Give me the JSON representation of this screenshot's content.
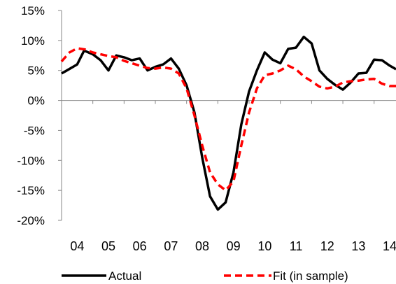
{
  "chart_data": {
    "type": "line",
    "title": "",
    "xlabel": "",
    "ylabel": "",
    "xlim": [
      2004.0,
      2014.7
    ],
    "ylim": [
      -20,
      15
    ],
    "y_ticks": [
      15,
      10,
      5,
      0,
      -5,
      -10,
      -15,
      -20
    ],
    "y_tick_labels": [
      "15%",
      "10%",
      "5%",
      "0%",
      "-5%",
      "-10%",
      "-15%",
      "-20%"
    ],
    "x_ticks": [
      2004,
      2005,
      2006,
      2007,
      2008,
      2009,
      2010,
      2011,
      2012,
      2013,
      2014
    ],
    "x_tick_labels": [
      "04",
      "05",
      "06",
      "07",
      "08",
      "09",
      "10",
      "11",
      "12",
      "13",
      "14"
    ],
    "grid": false,
    "legend_position": "bottom",
    "series": [
      {
        "name": "Actual",
        "color": "#000000",
        "style": "solid",
        "x": [
          2004.0,
          2004.17,
          2004.5,
          2004.72,
          2005.0,
          2005.25,
          2005.5,
          2005.75,
          2006.0,
          2006.25,
          2006.5,
          2006.75,
          2007.0,
          2007.25,
          2007.5,
          2007.75,
          2008.0,
          2008.25,
          2008.5,
          2008.75,
          2009.0,
          2009.25,
          2009.5,
          2009.75,
          2010.0,
          2010.25,
          2010.5,
          2010.75,
          2011.0,
          2011.25,
          2011.5,
          2011.75,
          2012.0,
          2012.25,
          2012.5,
          2012.75,
          2013.0,
          2013.25,
          2013.5,
          2013.75,
          2014.0,
          2014.25,
          2014.5,
          2014.7
        ],
        "values": [
          4.5,
          5.0,
          6.0,
          8.3,
          7.7,
          6.7,
          5.0,
          7.5,
          7.2,
          6.7,
          7.0,
          5.0,
          5.6,
          6.0,
          7.0,
          5.3,
          2.5,
          -2.0,
          -9.5,
          -16.0,
          -18.2,
          -17.0,
          -12.0,
          -4.0,
          1.5,
          5.0,
          8.0,
          6.8,
          6.2,
          8.6,
          8.8,
          10.6,
          9.5,
          5.0,
          3.6,
          2.6,
          1.8,
          3.0,
          4.5,
          4.6,
          6.8,
          6.7,
          5.8,
          5.2
        ]
      },
      {
        "name": "Fit (in sample)",
        "color": "#ff0000",
        "style": "dashed",
        "x": [
          2004.0,
          2004.25,
          2004.5,
          2004.75,
          2005.0,
          2005.25,
          2005.5,
          2005.75,
          2006.0,
          2006.25,
          2006.5,
          2006.75,
          2007.0,
          2007.25,
          2007.5,
          2007.75,
          2008.0,
          2008.25,
          2008.5,
          2008.75,
          2009.0,
          2009.25,
          2009.5,
          2009.75,
          2010.0,
          2010.25,
          2010.5,
          2010.75,
          2011.0,
          2011.25,
          2011.5,
          2011.75,
          2012.0,
          2012.25,
          2012.5,
          2012.75,
          2013.0,
          2013.25,
          2013.5,
          2013.75,
          2014.0,
          2014.25,
          2014.5,
          2014.7
        ],
        "values": [
          6.5,
          8.0,
          8.7,
          8.5,
          8.0,
          7.7,
          7.4,
          7.2,
          6.6,
          6.2,
          5.8,
          5.4,
          5.3,
          5.5,
          5.3,
          4.5,
          2.0,
          -2.5,
          -7.5,
          -12.0,
          -14.0,
          -15.0,
          -13.5,
          -7.5,
          -2.0,
          2.0,
          4.2,
          4.5,
          5.0,
          5.8,
          5.2,
          4.0,
          3.2,
          2.3,
          2.0,
          2.3,
          3.0,
          3.2,
          3.3,
          3.5,
          3.6,
          2.8,
          2.4,
          2.4
        ]
      }
    ]
  }
}
